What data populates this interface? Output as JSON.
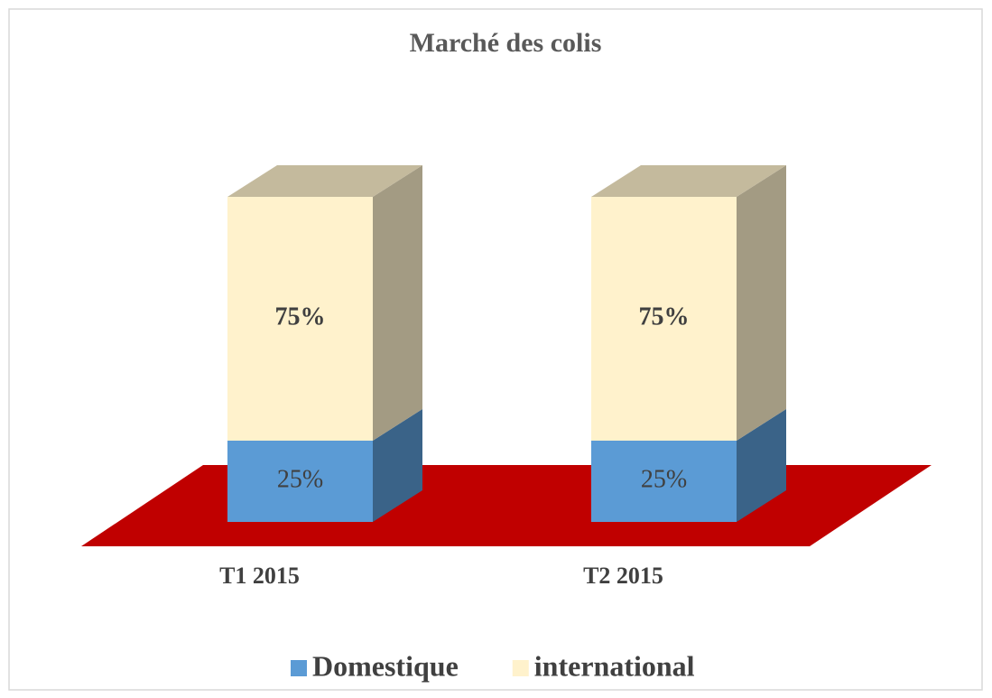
{
  "chart_data": {
    "type": "bar3d_stacked",
    "title": "Marché des colis",
    "categories": [
      "T1 2015",
      "T2 2015"
    ],
    "series": [
      {
        "name": "Domestique",
        "color": "#5b9bd5",
        "values": [
          25,
          25
        ],
        "value_labels": [
          "25%",
          "25%"
        ]
      },
      {
        "name": "international",
        "color": "#fff2cc",
        "values": [
          75,
          75
        ],
        "value_labels": [
          "75%",
          "75%"
        ]
      }
    ],
    "floor_color": "#c00000"
  }
}
